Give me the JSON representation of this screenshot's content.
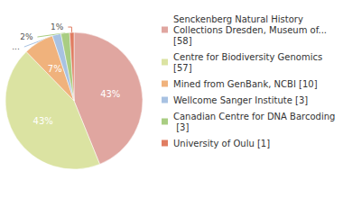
{
  "chart_data": {
    "type": "pie",
    "categories": [
      "Senckenberg Natural History Collections Dresden, Museum of... [58]",
      "Centre for Biodiversity Genomics [57]",
      "Mined from GenBank, NCBI [10]",
      "Wellcome Sanger Institute [3]",
      "Canadian Centre for DNA Barcoding [3]",
      "University of Oulu [1]"
    ],
    "values": [
      43,
      43,
      7,
      2,
      2,
      1
    ],
    "value_labels": [
      "43%",
      "43%",
      "7%",
      "2%",
      "2%",
      "1%"
    ],
    "colors": [
      "#e0a6a0",
      "#dbe3a2",
      "#f0b27c",
      "#a8c2e2",
      "#a9cd82",
      "#e07d62"
    ],
    "data_labels": true,
    "legend": "right"
  }
}
